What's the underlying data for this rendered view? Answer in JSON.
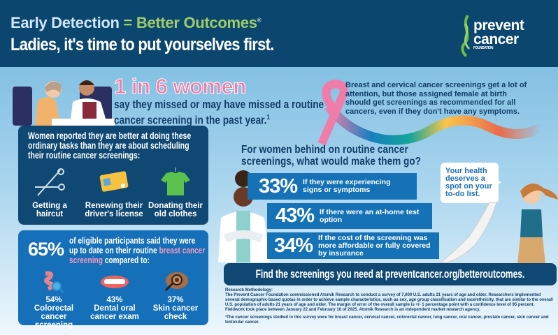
{
  "header": {
    "title_part1": "Early Detection",
    "equals": "=",
    "title_part2": "Better Outcomes",
    "registered": "®",
    "subtitle": "Ladies, it's time to put yourselves first.",
    "logo": {
      "line1": "prevent",
      "line2": "cancer",
      "line3": "FOUNDATION"
    }
  },
  "headline": {
    "stat": "1 in 6 women",
    "text": "say they missed or may have missed a routine cancer screening in the past year.",
    "footnote": "1"
  },
  "tasks": {
    "intro": "Women reported they are better at doing these ordinary tasks than they are about scheduling their routine cancer screenings:",
    "items": [
      {
        "label": "Getting a haircut",
        "icon": "scissors-icon"
      },
      {
        "label": "Renewing their driver's license",
        "icon": "id-card-icon"
      },
      {
        "label": "Donating their old clothes",
        "icon": "shirt-icon"
      }
    ]
  },
  "breast": {
    "pct": "65%",
    "text_before": "of eligible participants said they were up to date on their routine ",
    "highlight": "breast cancer screening",
    "text_after": " compared to:",
    "items": [
      {
        "pct": "54%",
        "label": "Colorectal cancer screening",
        "icon": "colon-magnifier-icon"
      },
      {
        "pct": "43%",
        "label": "Dental oral cancer exam",
        "icon": "teeth-icon"
      },
      {
        "pct": "37%",
        "label": "Skin cancer check",
        "icon": "skin-magnifier-icon"
      }
    ]
  },
  "ribbon_text": "Breast and cervical cancer screenings get a lot of attention, but those assigned female at birth should get screenings as recommended for all cancers, even if they don't have any symptoms.",
  "question": "For women behind on routine cancer screenings, what would make them go?",
  "reasons": [
    {
      "pct": "33%",
      "label": "If they were experiencing signs or symptoms"
    },
    {
      "pct": "43%",
      "label": "If there were an at-home test option"
    },
    {
      "pct": "34%",
      "label": "If the cost of the screening was more affordable or fully covered by insurance"
    }
  ],
  "bubble": "Your health deserves a spot on your to-do list.",
  "cta": "Find the screenings you need at preventcancer.org/betteroutcomes.",
  "research": {
    "heading": "Research Methodology:",
    "body": "The Prevent Cancer Foundation commissioned Atomik Research to conduct a survey of 7,000 U.S. adults 21 years of age and older. Researchers implemented several demographic-based quotas in order to achieve sample characteristics, such as sex, age group classification and race/ethnicity, that are similar to the overall U.S. population of adults 21 years of age and older. The margin of error of the overall sample is +/- 1 percentage point with a confidence level of 95 percent. Fieldwork took place between January 22 and February 10 of 2025. Atomik Research is an independent market research agency.",
    "footnote": "¹The cancer screenings studied in this survey were for breast cancer, cervical cancer, colorectal cancer, lung cancer, oral cancer, prostate cancer, skin cancer and testicular cancer."
  },
  "colors": {
    "navy": "#0b466f",
    "blue": "#1572b6",
    "pink": "#f47aa6",
    "green": "#9dcc6a"
  }
}
